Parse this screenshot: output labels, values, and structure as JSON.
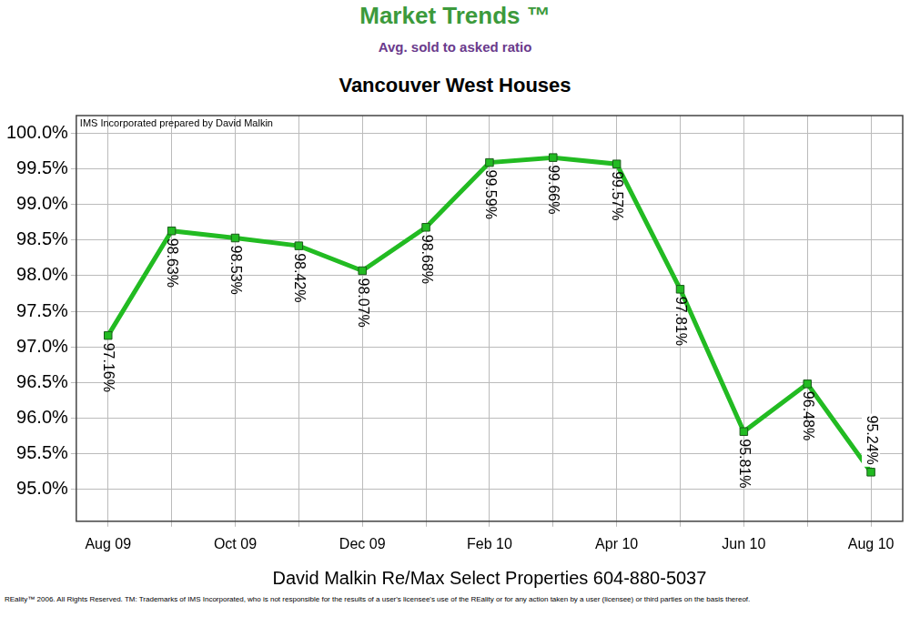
{
  "chart_data": {
    "type": "line",
    "header": "Market Trends ™",
    "subtitle": "Avg. sold to asked ratio",
    "title": "Vancouver West Houses",
    "annotations": [
      "IMS Incorporated prepared by David Malkin"
    ],
    "x_label": "David Malkin Re/Max Select Properties 604-880-5037",
    "footer": "REality™ 2006. All Rights Reserved. TM: Trademarks of IMS Incorporated, who is not responsible for the results of a user's licensee's use of the REality  or for any action taken by a user (licensee) or third parties on the basis thereof.",
    "categories": [
      "Aug 09",
      null,
      "Oct 09",
      null,
      "Dec 09",
      null,
      "Feb 10",
      null,
      "Apr 10",
      null,
      "Jun 10",
      null,
      "Aug 10"
    ],
    "values": [
      97.16,
      98.63,
      98.53,
      98.42,
      98.07,
      98.68,
      99.59,
      99.66,
      99.57,
      97.81,
      95.81,
      96.48,
      95.24
    ],
    "value_labels": [
      "97.16%",
      "98.63%",
      "98.53%",
      "98.42%",
      "98.07%",
      "98.68%",
      "99.59%",
      "99.66%",
      "99.57%",
      "97.81%",
      "95.81%",
      "96.48%",
      "95.24%"
    ],
    "data_labels": true,
    "color": "#22bb22",
    "marker": "square",
    "line_style": "solid",
    "ylim": [
      94.55,
      100.25
    ],
    "yticks": [
      {
        "value": 95,
        "label": "95.0%"
      },
      {
        "value": 95.5,
        "label": "95.5%"
      },
      {
        "value": 96,
        "label": "96.0%"
      },
      {
        "value": 96.5,
        "label": "96.5%"
      },
      {
        "value": 97,
        "label": "97.0%"
      },
      {
        "value": 97.5,
        "label": "97.5%"
      },
      {
        "value": 98,
        "label": "98.0%"
      },
      {
        "value": 98.5,
        "label": "98.5%"
      },
      {
        "value": 99,
        "label": "99.0%"
      },
      {
        "value": 99.5,
        "label": "99.5%"
      },
      {
        "value": 100,
        "label": "100.0%"
      }
    ],
    "grid": true
  }
}
